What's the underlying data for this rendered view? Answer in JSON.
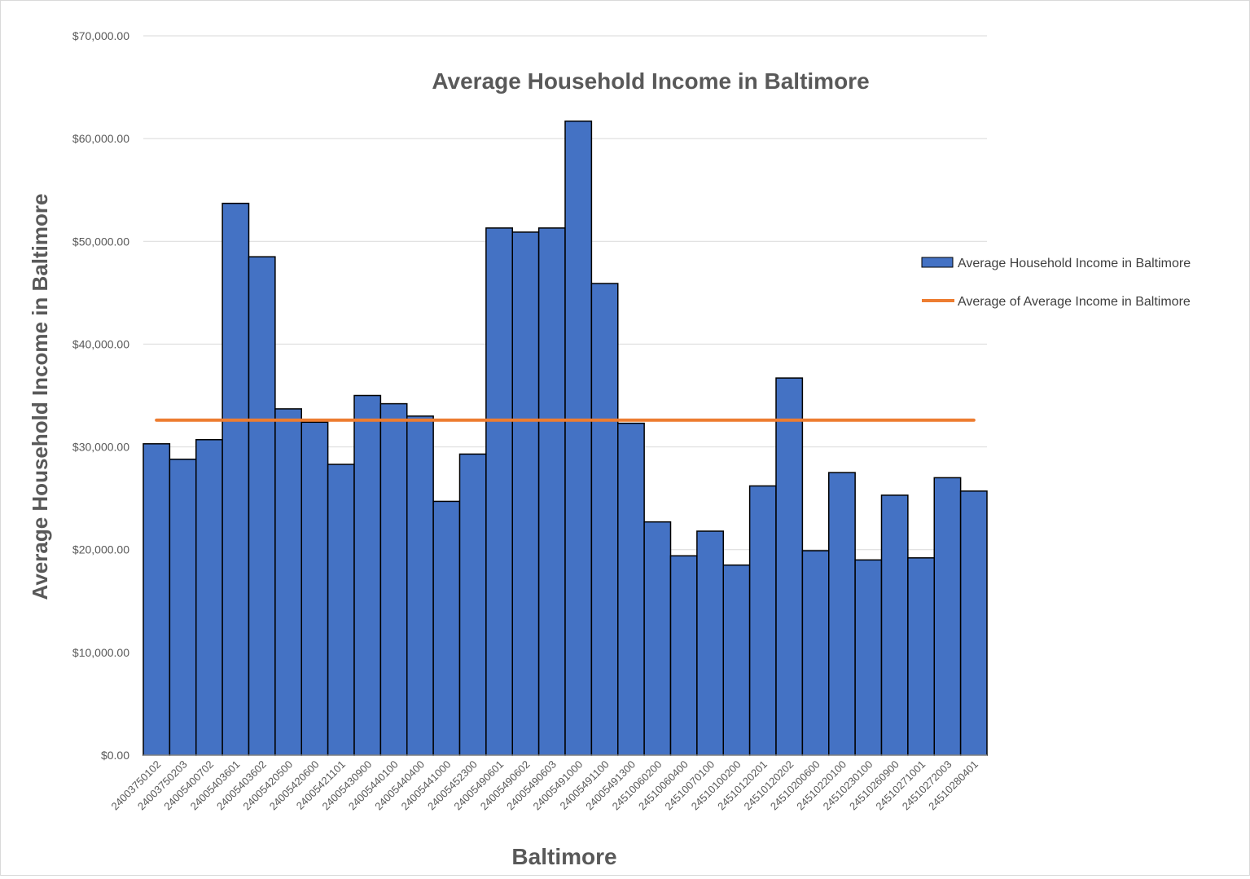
{
  "chart_data": {
    "type": "bar",
    "title": "Average Household Income in Baltimore",
    "xlabel": "Baltimore",
    "ylabel": "Average Household Income in Baltimore",
    "ylim": [
      0,
      70000
    ],
    "yticks": [
      0,
      10000,
      20000,
      30000,
      40000,
      50000,
      60000,
      70000
    ],
    "ytick_labels": [
      "$0.00",
      "$10,000.00",
      "$20,000.00",
      "$30,000.00",
      "$40,000.00",
      "$50,000.00",
      "$60,000.00",
      "$70,000.00"
    ],
    "grid": true,
    "legend_position": "right",
    "bar_gap": 0,
    "categories": [
      "24003750102",
      "24003750203",
      "24005400702",
      "24005403601",
      "24005403602",
      "24005420500",
      "24005420600",
      "24005421101",
      "24005430900",
      "24005440100",
      "24005440400",
      "24005441000",
      "24005452300",
      "24005490601",
      "24005490602",
      "24005490603",
      "24005491000",
      "24005491100",
      "24005491300",
      "24510060200",
      "24510060400",
      "24510070100",
      "24510100200",
      "24510120201",
      "24510120202",
      "24510200600",
      "24510220100",
      "24510230100",
      "24510260900",
      "24510271001",
      "24510272003",
      "24510280401"
    ],
    "series": [
      {
        "name": "Average Household Income in Baltimore",
        "kind": "bar",
        "color": "#4472C4",
        "values": [
          30300,
          28800,
          30700,
          53700,
          48500,
          33700,
          32400,
          28300,
          35000,
          34200,
          33000,
          24700,
          29300,
          51300,
          50900,
          51300,
          61700,
          45900,
          32300,
          22700,
          19400,
          21800,
          18500,
          26200,
          36700,
          19900,
          27500,
          19000,
          25300,
          19200,
          27000,
          25700
        ]
      },
      {
        "name": "Average of Average Income in Baltimore",
        "kind": "line",
        "color": "#ED7D31",
        "value": 32600
      }
    ]
  }
}
